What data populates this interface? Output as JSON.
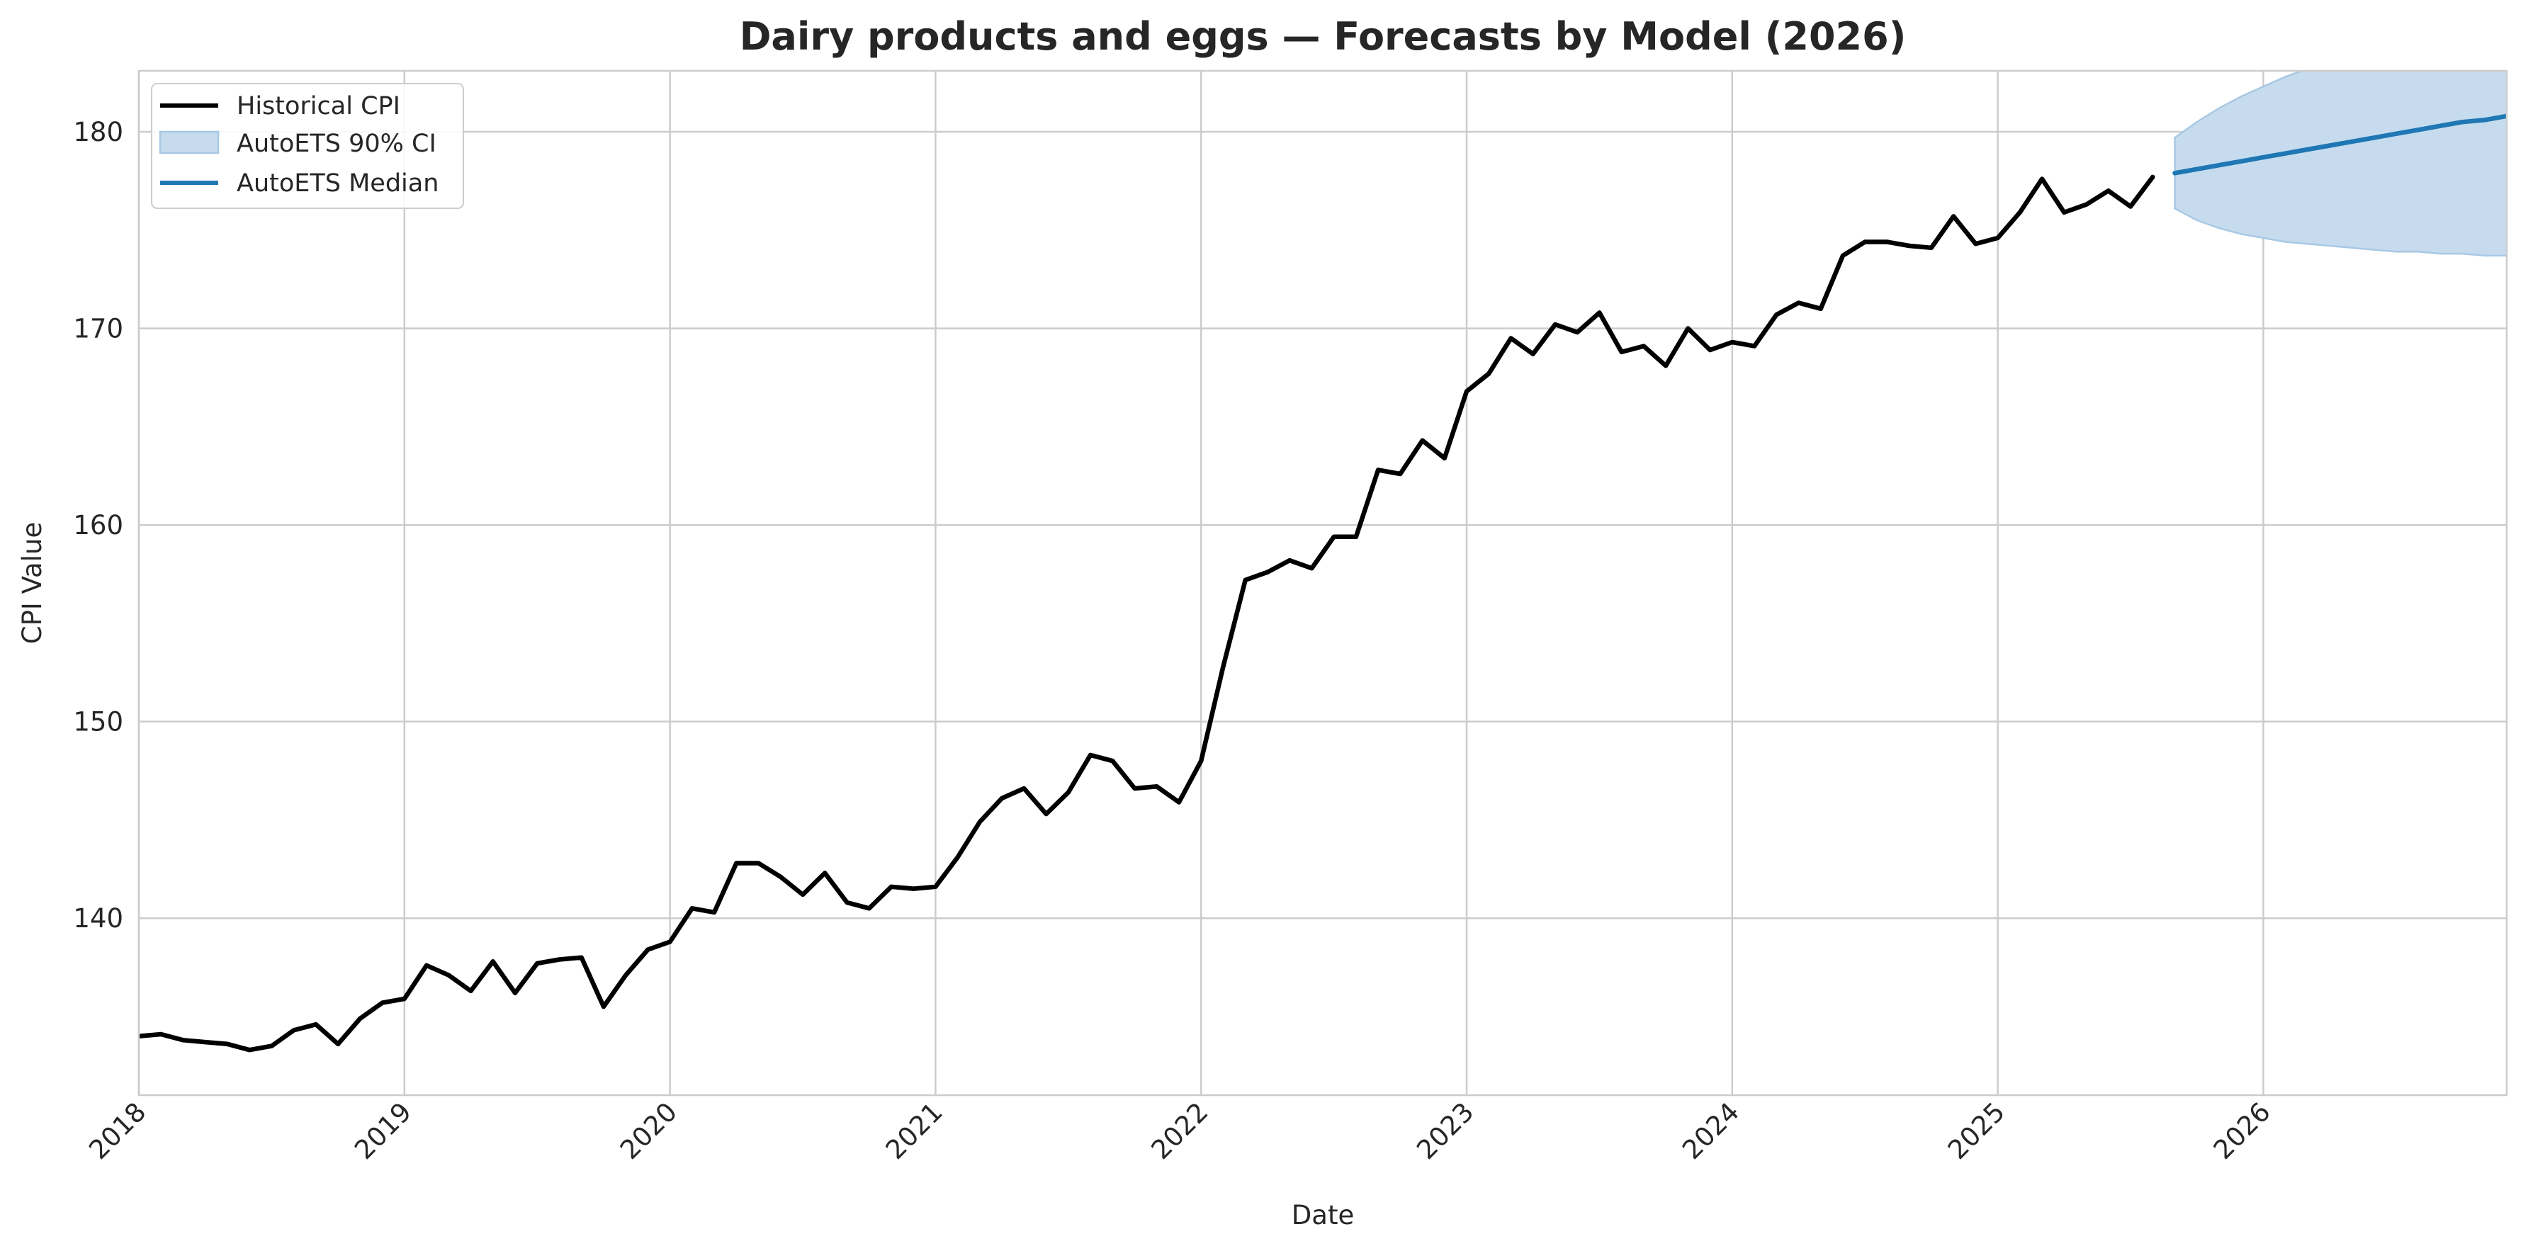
{
  "chart_data": {
    "type": "line",
    "title": "Dairy products and eggs — Forecasts by Model (2026)",
    "xlabel": "Date",
    "ylabel": "CPI Value",
    "xlim": [
      "2018-01",
      "2026-12"
    ],
    "ylim": [
      131,
      183.1
    ],
    "grid": true,
    "legend_position": "top-left",
    "x_ticks": [
      "2018",
      "2019",
      "2020",
      "2021",
      "2022",
      "2023",
      "2024",
      "2025",
      "2026"
    ],
    "y_ticks": [
      140,
      150,
      160,
      170,
      180
    ],
    "colors": {
      "historical": "#000000",
      "median": "#1f77b4",
      "ci_fill": "#c6dcee",
      "ci_edge": "#a8c8e4",
      "grid": "#cccccc",
      "frame": "#cccccc"
    },
    "series": [
      {
        "name": "Historical CPI",
        "kind": "line",
        "x": [
          "2018-01",
          "2018-02",
          "2018-03",
          "2018-04",
          "2018-05",
          "2018-06",
          "2018-07",
          "2018-08",
          "2018-09",
          "2018-10",
          "2018-11",
          "2018-12",
          "2019-01",
          "2019-02",
          "2019-03",
          "2019-04",
          "2019-05",
          "2019-06",
          "2019-07",
          "2019-08",
          "2019-09",
          "2019-10",
          "2019-11",
          "2019-12",
          "2020-01",
          "2020-02",
          "2020-03",
          "2020-04",
          "2020-05",
          "2020-06",
          "2020-07",
          "2020-08",
          "2020-09",
          "2020-10",
          "2020-11",
          "2020-12",
          "2021-01",
          "2021-02",
          "2021-03",
          "2021-04",
          "2021-05",
          "2021-06",
          "2021-07",
          "2021-08",
          "2021-09",
          "2021-10",
          "2021-11",
          "2021-12",
          "2022-01",
          "2022-02",
          "2022-03",
          "2022-04",
          "2022-05",
          "2022-06",
          "2022-07",
          "2022-08",
          "2022-09",
          "2022-10",
          "2022-11",
          "2022-12",
          "2023-01",
          "2023-02",
          "2023-03",
          "2023-04",
          "2023-05",
          "2023-06",
          "2023-07",
          "2023-08",
          "2023-09",
          "2023-10",
          "2023-11",
          "2023-12",
          "2024-01",
          "2024-02",
          "2024-03",
          "2024-04",
          "2024-05",
          "2024-06",
          "2024-07",
          "2024-08",
          "2024-09",
          "2024-10",
          "2024-11",
          "2024-12",
          "2025-01",
          "2025-02",
          "2025-03",
          "2025-04",
          "2025-05",
          "2025-06",
          "2025-07",
          "2025-08"
        ],
        "values": [
          134.0,
          134.1,
          133.8,
          133.7,
          133.6,
          133.3,
          133.5,
          134.3,
          134.6,
          133.6,
          134.9,
          135.7,
          135.9,
          137.6,
          137.1,
          136.3,
          137.8,
          136.2,
          137.7,
          137.9,
          138.0,
          135.5,
          137.1,
          138.4,
          138.8,
          140.5,
          140.3,
          142.8,
          142.8,
          142.1,
          141.2,
          142.3,
          140.8,
          140.5,
          141.6,
          141.5,
          141.6,
          143.1,
          144.9,
          146.1,
          146.6,
          145.3,
          146.4,
          148.3,
          148.0,
          146.6,
          146.7,
          145.9,
          148.0,
          152.8,
          157.2,
          157.6,
          158.2,
          157.8,
          159.4,
          159.4,
          162.8,
          162.6,
          164.3,
          163.4,
          166.8,
          167.7,
          169.5,
          168.7,
          170.2,
          169.8,
          170.8,
          168.8,
          169.1,
          168.1,
          170.0,
          168.9,
          169.3,
          169.1,
          170.7,
          171.3,
          171.0,
          173.7,
          174.4,
          174.4,
          174.2,
          174.1,
          175.7,
          174.3,
          174.6,
          175.9,
          177.6,
          175.9,
          176.3,
          177.0,
          176.2,
          177.7
        ]
      },
      {
        "name": "AutoETS 90% CI",
        "kind": "band",
        "x": [
          "2025-09",
          "2025-10",
          "2025-11",
          "2025-12",
          "2026-01",
          "2026-02",
          "2026-03",
          "2026-04",
          "2026-05",
          "2026-06",
          "2026-07",
          "2026-08",
          "2026-09",
          "2026-10",
          "2026-11",
          "2026-12"
        ],
        "lower": [
          176.1,
          175.5,
          175.1,
          174.8,
          174.6,
          174.4,
          174.3,
          174.2,
          174.1,
          174.0,
          173.9,
          173.9,
          173.8,
          173.8,
          173.7,
          173.7
        ],
        "upper": [
          179.7,
          180.5,
          181.2,
          181.8,
          182.3,
          182.8,
          183.2,
          183.6,
          183.9,
          184.2,
          184.5,
          184.8,
          185.1,
          185.3,
          185.6,
          185.8
        ]
      },
      {
        "name": "AutoETS Median",
        "kind": "line",
        "x": [
          "2025-09",
          "2025-10",
          "2025-11",
          "2025-12",
          "2026-01",
          "2026-02",
          "2026-03",
          "2026-04",
          "2026-05",
          "2026-06",
          "2026-07",
          "2026-08",
          "2026-09",
          "2026-10",
          "2026-11",
          "2026-12"
        ],
        "values": [
          177.9,
          178.1,
          178.3,
          178.5,
          178.7,
          178.9,
          179.1,
          179.3,
          179.5,
          179.7,
          179.9,
          180.1,
          180.3,
          180.5,
          180.6,
          180.8
        ]
      }
    ]
  }
}
